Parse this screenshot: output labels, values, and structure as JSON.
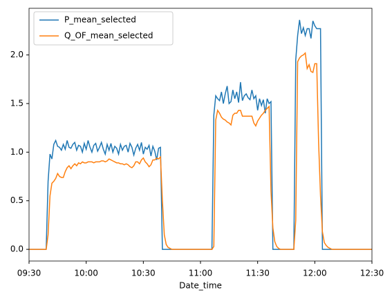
{
  "chart_data": {
    "type": "line",
    "x": [
      "09:30",
      "09:31",
      "09:32",
      "09:33",
      "09:34",
      "09:35",
      "09:36",
      "09:37",
      "09:38",
      "09:39",
      "09:40",
      "09:41",
      "09:42",
      "09:43",
      "09:44",
      "09:45",
      "09:46",
      "09:47",
      "09:48",
      "09:49",
      "09:50",
      "09:51",
      "09:52",
      "09:53",
      "09:54",
      "09:55",
      "09:56",
      "09:57",
      "09:58",
      "09:59",
      "10:00",
      "10:01",
      "10:02",
      "10:03",
      "10:04",
      "10:05",
      "10:06",
      "10:07",
      "10:08",
      "10:09",
      "10:10",
      "10:11",
      "10:12",
      "10:13",
      "10:14",
      "10:15",
      "10:16",
      "10:17",
      "10:18",
      "10:19",
      "10:20",
      "10:21",
      "10:22",
      "10:23",
      "10:24",
      "10:25",
      "10:26",
      "10:27",
      "10:28",
      "10:29",
      "10:30",
      "10:31",
      "10:32",
      "10:33",
      "10:34",
      "10:35",
      "10:36",
      "10:37",
      "10:38",
      "10:39",
      "10:40",
      "10:41",
      "10:42",
      "10:43",
      "10:44",
      "10:45",
      "10:46",
      "10:47",
      "10:48",
      "10:49",
      "10:50",
      "10:51",
      "10:52",
      "10:53",
      "10:54",
      "10:55",
      "10:56",
      "10:57",
      "10:58",
      "10:59",
      "11:00",
      "11:01",
      "11:02",
      "11:03",
      "11:04",
      "11:05",
      "11:06",
      "11:07",
      "11:08",
      "11:09",
      "11:10",
      "11:11",
      "11:12",
      "11:13",
      "11:14",
      "11:15",
      "11:16",
      "11:17",
      "11:18",
      "11:19",
      "11:20",
      "11:21",
      "11:22",
      "11:23",
      "11:24",
      "11:25",
      "11:26",
      "11:27",
      "11:28",
      "11:29",
      "11:30",
      "11:31",
      "11:32",
      "11:33",
      "11:34",
      "11:35",
      "11:36",
      "11:37",
      "11:38",
      "11:39",
      "11:40",
      "11:41",
      "11:42",
      "11:43",
      "11:44",
      "11:45",
      "11:46",
      "11:47",
      "11:48",
      "11:49",
      "11:50",
      "11:51",
      "11:52",
      "11:53",
      "11:54",
      "11:55",
      "11:56",
      "11:57",
      "11:58",
      "11:59",
      "12:00",
      "12:01",
      "12:02",
      "12:03",
      "12:04",
      "12:05",
      "12:06",
      "12:07",
      "12:08",
      "12:09",
      "12:10",
      "12:11",
      "12:12",
      "12:13",
      "12:14",
      "12:15",
      "12:16",
      "12:17",
      "12:18",
      "12:19",
      "12:20",
      "12:21",
      "12:22",
      "12:23",
      "12:24",
      "12:25",
      "12:26",
      "12:27",
      "12:28",
      "12:29",
      "12:30"
    ],
    "series": [
      {
        "name": "P_mean_selected",
        "color": "#1f77b4",
        "values": [
          0,
          0,
          0,
          0,
          0,
          0,
          0,
          0,
          0,
          0,
          0.7,
          0.98,
          0.93,
          1.08,
          1.12,
          1.06,
          1.05,
          1.02,
          1.08,
          1.03,
          1.12,
          1.05,
          1.04,
          1.08,
          1.1,
          1.02,
          1.07,
          1.06,
          1.0,
          1.09,
          1.03,
          1.12,
          1.05,
          1.0,
          1.07,
          1.09,
          1.01,
          1.05,
          1.1,
          1.03,
          0.98,
          1.08,
          1.02,
          1.09,
          1.0,
          1.06,
          1.04,
          0.98,
          1.08,
          1.02,
          1.06,
          1.07,
          1.0,
          1.09,
          1.05,
          0.97,
          1.04,
          1.08,
          1.02,
          1.1,
          0.98,
          1.05,
          1.03,
          1.07,
          0.96,
          1.06,
          1.01,
          0.92,
          1.04,
          1.05,
          0,
          0,
          0,
          0,
          0,
          0,
          0,
          0,
          0,
          0,
          0,
          0,
          0,
          0,
          0,
          0,
          0,
          0,
          0,
          0,
          0,
          0,
          0,
          0,
          0,
          0,
          0,
          1.38,
          1.58,
          1.55,
          1.53,
          1.62,
          1.5,
          1.6,
          1.68,
          1.5,
          1.52,
          1.64,
          1.55,
          1.62,
          1.51,
          1.72,
          1.53,
          1.58,
          1.6,
          1.56,
          1.54,
          1.64,
          1.55,
          1.58,
          1.43,
          1.55,
          1.48,
          1.54,
          1.4,
          1.55,
          1.5,
          1.52,
          0,
          0,
          0,
          0,
          0,
          0,
          0,
          0,
          0,
          0,
          0,
          0,
          1.95,
          2.2,
          2.36,
          2.22,
          2.28,
          2.2,
          2.27,
          2.27,
          2.17,
          2.35,
          2.3,
          2.27,
          2.27,
          2.27,
          0,
          0,
          0,
          0,
          0,
          0,
          0,
          0,
          0,
          0,
          0,
          0,
          0,
          0,
          0,
          0,
          0,
          0,
          0,
          0,
          0,
          0,
          0,
          0,
          0,
          0,
          0
        ]
      },
      {
        "name": "Q_OF_mean_selected",
        "color": "#ff7f0e",
        "values": [
          0,
          0,
          0,
          0,
          0,
          0,
          0,
          0,
          0,
          0,
          0.15,
          0.55,
          0.68,
          0.7,
          0.73,
          0.78,
          0.75,
          0.74,
          0.74,
          0.8,
          0.84,
          0.86,
          0.83,
          0.86,
          0.88,
          0.86,
          0.89,
          0.88,
          0.9,
          0.89,
          0.89,
          0.9,
          0.9,
          0.9,
          0.89,
          0.9,
          0.9,
          0.9,
          0.91,
          0.91,
          0.9,
          0.91,
          0.93,
          0.92,
          0.91,
          0.9,
          0.89,
          0.89,
          0.88,
          0.88,
          0.87,
          0.88,
          0.87,
          0.85,
          0.84,
          0.86,
          0.9,
          0.9,
          0.88,
          0.92,
          0.94,
          0.9,
          0.88,
          0.85,
          0.87,
          0.92,
          0.92,
          0.94,
          0.93,
          0.95,
          0.5,
          0.15,
          0.05,
          0.02,
          0.01,
          0,
          0,
          0,
          0,
          0,
          0,
          0,
          0,
          0,
          0,
          0,
          0,
          0,
          0,
          0,
          0,
          0,
          0,
          0,
          0,
          0,
          0,
          0.03,
          1.33,
          1.43,
          1.4,
          1.36,
          1.34,
          1.33,
          1.31,
          1.3,
          1.28,
          1.38,
          1.4,
          1.4,
          1.43,
          1.43,
          1.37,
          1.37,
          1.37,
          1.37,
          1.37,
          1.37,
          1.3,
          1.27,
          1.32,
          1.35,
          1.38,
          1.4,
          1.43,
          1.45,
          1.47,
          0.6,
          0.22,
          0.08,
          0.03,
          0.01,
          0,
          0,
          0,
          0,
          0,
          0,
          0,
          0,
          0.3,
          1.93,
          1.97,
          1.99,
          2.0,
          2.02,
          1.86,
          1.9,
          1.83,
          1.82,
          1.91,
          1.91,
          1.1,
          0.55,
          0.18,
          0.07,
          0.04,
          0.02,
          0.01,
          0,
          0,
          0,
          0,
          0,
          0,
          0,
          0,
          0,
          0,
          0,
          0,
          0,
          0,
          0,
          0,
          0,
          0,
          0,
          0,
          0,
          0
        ]
      }
    ],
    "xlabel": "Date_time",
    "xlim": [
      "09:30",
      "12:30"
    ],
    "xticks": [
      "09:30",
      "10:00",
      "10:30",
      "11:00",
      "11:30",
      "12:00",
      "12:30"
    ],
    "ylim": [
      -0.12,
      2.48
    ],
    "yticks": [
      {
        "value": 0,
        "label": "0.0"
      },
      0.5,
      {
        "value": 1,
        "label": "1.0"
      },
      1.5,
      {
        "value": 2,
        "label": "2.0"
      }
    ],
    "grid": false,
    "legend": "upper left"
  }
}
